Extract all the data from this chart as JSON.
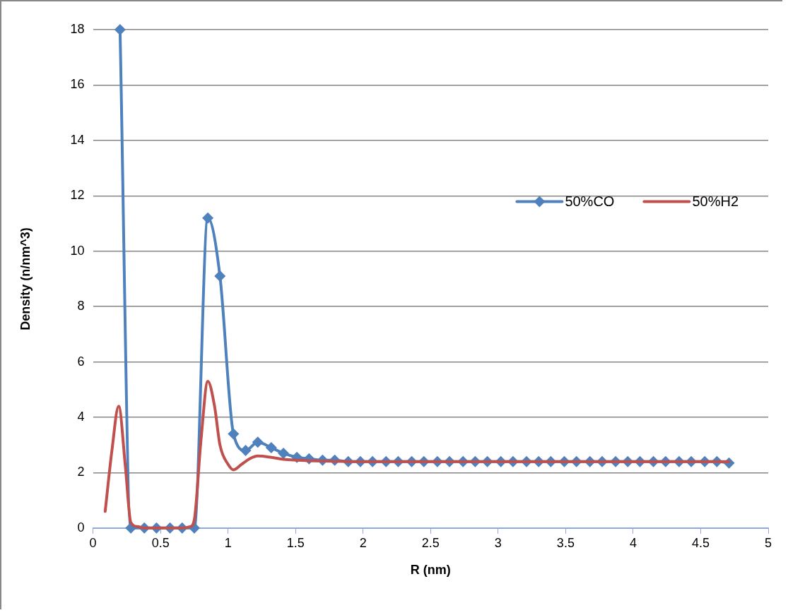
{
  "chart_data": {
    "type": "line",
    "xlabel": "R (nm)",
    "ylabel": "Density (n/nm^3)",
    "xlim": [
      0,
      5
    ],
    "xticks": [
      0,
      0.5,
      1,
      1.5,
      2,
      2.5,
      3,
      3.5,
      4,
      4.5,
      5
    ],
    "ylim": [
      0,
      18
    ],
    "yticks": [
      0,
      2,
      4,
      6,
      8,
      10,
      12,
      14,
      16,
      18
    ],
    "grid": "y",
    "legend": "right",
    "series": [
      {
        "name": "50%CO",
        "color": "#4f81bd",
        "marker": "diamond",
        "x": [
          0.2,
          0.28,
          0.38,
          0.47,
          0.57,
          0.66,
          0.75,
          0.85,
          0.94,
          1.04,
          1.13,
          1.22,
          1.32,
          1.41,
          1.51,
          1.6,
          1.7,
          1.79,
          1.89,
          1.98,
          2.07,
          2.17,
          2.26,
          2.36,
          2.45,
          2.55,
          2.64,
          2.74,
          2.83,
          2.92,
          3.02,
          3.11,
          3.21,
          3.3,
          3.39,
          3.49,
          3.58,
          3.68,
          3.77,
          3.87,
          3.96,
          4.05,
          4.15,
          4.24,
          4.34,
          4.43,
          4.53,
          4.62,
          4.71
        ],
        "values": [
          18,
          0,
          0,
          0,
          0,
          0,
          0,
          11.2,
          9.1,
          3.4,
          2.8,
          3.1,
          2.9,
          2.7,
          2.55,
          2.5,
          2.45,
          2.45,
          2.4,
          2.4,
          2.4,
          2.4,
          2.4,
          2.4,
          2.4,
          2.4,
          2.4,
          2.4,
          2.4,
          2.4,
          2.4,
          2.4,
          2.4,
          2.4,
          2.4,
          2.4,
          2.4,
          2.4,
          2.4,
          2.4,
          2.4,
          2.4,
          2.4,
          2.4,
          2.4,
          2.4,
          2.4,
          2.4,
          2.35
        ]
      },
      {
        "name": "50%H2",
        "color": "#c0504d",
        "marker": "none",
        "x": [
          0.09,
          0.14,
          0.19,
          0.24,
          0.28,
          0.33,
          0.38,
          0.47,
          0.57,
          0.66,
          0.72,
          0.75,
          0.8,
          0.85,
          0.9,
          0.94,
          1.0,
          1.04,
          1.1,
          1.16,
          1.22,
          1.32,
          1.41,
          1.51,
          1.7,
          2.0,
          2.5,
          3.0,
          3.5,
          4.0,
          4.5,
          4.71
        ],
        "values": [
          0.6,
          2.8,
          4.4,
          2.2,
          0.2,
          0.05,
          0,
          0,
          0,
          0,
          0.05,
          0.3,
          3.2,
          5.3,
          4.4,
          3.0,
          2.3,
          2.1,
          2.3,
          2.5,
          2.6,
          2.55,
          2.48,
          2.45,
          2.42,
          2.4,
          2.4,
          2.4,
          2.4,
          2.4,
          2.4,
          2.4
        ]
      }
    ]
  }
}
